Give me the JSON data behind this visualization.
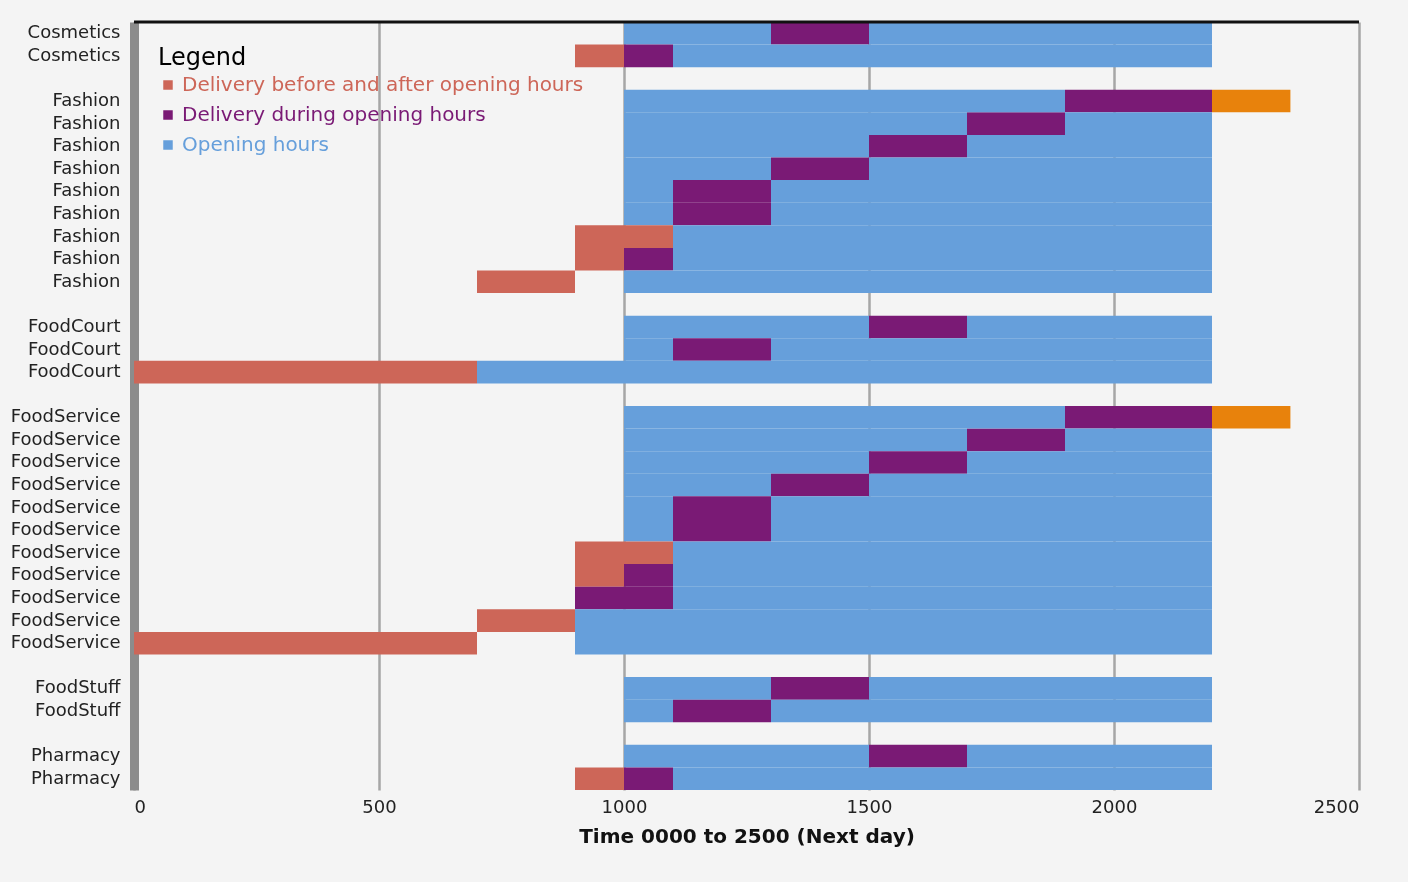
{
  "chart_data": {
    "type": "bar",
    "orientation": "horizontal",
    "xlabel": "Time 0000 to 2500 (Next day)",
    "legend_title": "Legend",
    "legend": "top left",
    "grid": "x",
    "categories": [
      "Cosmetics",
      "Cosmetics",
      null,
      "Fashion",
      "Fashion",
      "Fashion",
      "Fashion",
      "Fashion",
      "Fashion",
      "Fashion",
      "Fashion",
      "Fashion",
      null,
      "FoodCourt",
      "FoodCourt",
      "FoodCourt",
      null,
      "FoodService",
      "FoodService",
      "FoodService",
      "FoodService",
      "FoodService",
      "FoodService",
      "FoodService",
      "FoodService",
      "FoodService",
      "FoodService",
      "FoodService",
      null,
      "FoodStuff",
      "FoodStuff",
      null,
      "Pharmacy",
      "Pharmacy"
    ],
    "xlim": [
      0,
      2500
    ],
    "xticks": [
      0,
      500,
      1000,
      1500,
      2000,
      2500
    ],
    "series": [
      {
        "color": "#669fdb",
        "base": [
          1000,
          null,
          null,
          null,
          1000,
          1000,
          1000,
          1000,
          1000,
          null,
          null,
          null,
          null,
          1000,
          1000,
          null,
          null,
          null,
          1000,
          1000,
          1000,
          1000,
          1000,
          null,
          null,
          null,
          null,
          null,
          null,
          1000,
          1000,
          null,
          1000,
          null
        ],
        "values": [
          300,
          null,
          null,
          null,
          700,
          500,
          300,
          100,
          100,
          null,
          null,
          null,
          null,
          500,
          100,
          null,
          null,
          null,
          700,
          500,
          300,
          100,
          100,
          null,
          null,
          null,
          null,
          null,
          null,
          300,
          100,
          null,
          500,
          null
        ]
      },
      {
        "name": "Delivery before and after opening hours",
        "color": "#cd6658",
        "base": [
          null,
          900,
          null,
          null,
          null,
          null,
          null,
          null,
          null,
          900,
          900,
          700,
          null,
          null,
          null,
          0,
          null,
          null,
          null,
          null,
          null,
          null,
          null,
          900,
          900,
          null,
          700,
          0,
          null,
          null,
          null,
          null,
          null,
          900
        ],
        "values": [
          null,
          100,
          null,
          null,
          null,
          null,
          null,
          null,
          null,
          200,
          100,
          200,
          null,
          null,
          null,
          700,
          null,
          null,
          null,
          null,
          null,
          null,
          null,
          200,
          100,
          null,
          200,
          700,
          null,
          null,
          null,
          null,
          null,
          100
        ]
      },
      {
        "name": "Delivery during opening hours",
        "color": "#7a1a75",
        "base": [
          1300,
          1000,
          null,
          1900,
          1700,
          1500,
          1300,
          1100,
          1100,
          null,
          1000,
          null,
          null,
          1500,
          1100,
          null,
          null,
          1900,
          1700,
          1500,
          1300,
          1100,
          1100,
          null,
          1000,
          900,
          null,
          null,
          null,
          1300,
          1100,
          null,
          1500,
          1000
        ],
        "values": [
          200,
          100,
          null,
          300,
          200,
          200,
          200,
          200,
          200,
          null,
          100,
          null,
          null,
          200,
          200,
          null,
          null,
          300,
          200,
          200,
          200,
          200,
          200,
          null,
          100,
          200,
          null,
          null,
          null,
          200,
          200,
          null,
          200,
          100
        ]
      },
      {
        "name": "Opening hours",
        "color": "#669fdb",
        "base": [
          1500,
          1100,
          null,
          1000,
          1900,
          1700,
          1500,
          1300,
          1300,
          1100,
          1100,
          1000,
          null,
          1700,
          1300,
          700,
          null,
          1000,
          1900,
          1700,
          1500,
          1300,
          1300,
          1100,
          1100,
          1100,
          900,
          900,
          null,
          1500,
          1300,
          null,
          1700,
          1100
        ],
        "values": [
          700,
          1100,
          null,
          900,
          300,
          500,
          700,
          900,
          900,
          1100,
          1100,
          1200,
          null,
          500,
          900,
          1500,
          null,
          900,
          300,
          500,
          700,
          900,
          900,
          1100,
          1100,
          1100,
          1300,
          1300,
          null,
          700,
          900,
          null,
          500,
          1100
        ]
      },
      {
        "color": "#e8820c",
        "base": [
          null,
          null,
          null,
          2200,
          null,
          null,
          null,
          null,
          null,
          null,
          null,
          null,
          null,
          null,
          null,
          null,
          null,
          2200,
          null,
          null,
          null,
          null,
          null,
          null,
          null,
          null,
          null,
          null,
          null,
          null,
          null,
          null,
          null,
          null
        ],
        "values": [
          null,
          null,
          null,
          160,
          null,
          null,
          null,
          null,
          null,
          null,
          null,
          null,
          null,
          null,
          null,
          null,
          null,
          160,
          null,
          null,
          null,
          null,
          null,
          null,
          null,
          null,
          null,
          null,
          null,
          null,
          null,
          null,
          null,
          null
        ]
      }
    ]
  }
}
